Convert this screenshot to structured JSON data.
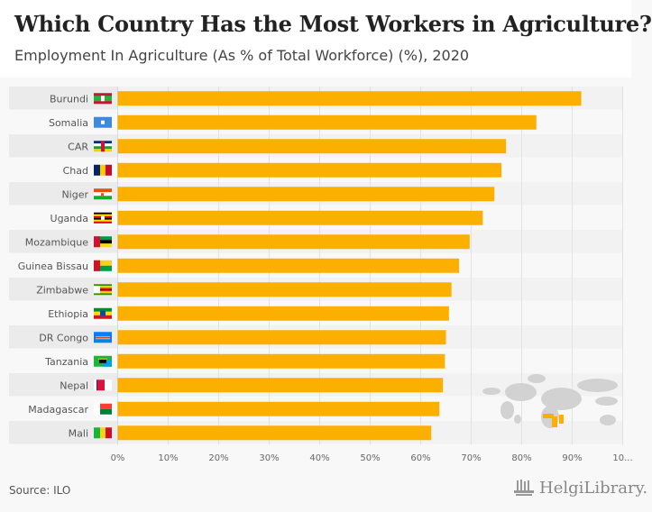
{
  "header": {
    "title": "Which Country Has the Most Workers in Agriculture?",
    "subtitle": "Employment In Agriculture (As % of Total Workforce) (%), 2020"
  },
  "footer": {
    "source": "Source: ILO",
    "logo_text": "HelgiLibrary."
  },
  "colors": {
    "bar": "#fbb000",
    "band": "#ebebeb",
    "grid": "#e2e2e2"
  },
  "chart_data": {
    "type": "bar",
    "orientation": "horizontal",
    "title": "Which Country Has the Most Workers in Agriculture?",
    "subtitle": "Employment In Agriculture (As % of Total Workforce) (%), 2020",
    "categories": [
      "Burundi",
      "Somalia",
      "CAR",
      "Chad",
      "Niger",
      "Uganda",
      "Mozambique",
      "Guinea Bissau",
      "Zimbabwe",
      "Ethiopia",
      "DR Congo",
      "Tanzania",
      "Nepal",
      "Madagascar",
      "Mali"
    ],
    "values": [
      91.8,
      82.9,
      76.9,
      76.0,
      74.6,
      72.3,
      69.7,
      67.6,
      66.1,
      65.6,
      65.0,
      64.8,
      64.4,
      63.7,
      62.1
    ],
    "xlim": [
      0,
      100
    ],
    "ticks": [
      "0%",
      "10%",
      "20%",
      "30%",
      "40%",
      "50%",
      "60%",
      "70%",
      "80%",
      "90%",
      "10..."
    ],
    "tick_values": [
      0,
      10,
      20,
      30,
      40,
      50,
      60,
      70,
      80,
      90,
      100
    ],
    "grid": true,
    "legend": "none"
  }
}
